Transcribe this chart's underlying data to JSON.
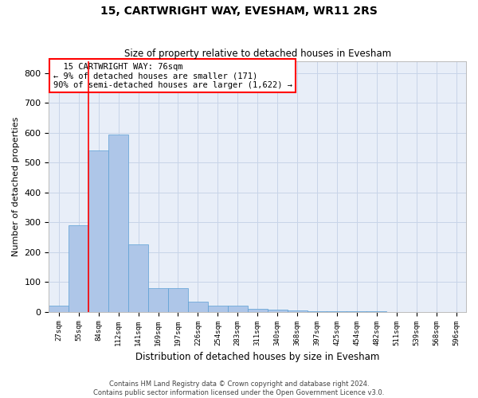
{
  "title": "15, CARTWRIGHT WAY, EVESHAM, WR11 2RS",
  "subtitle": "Size of property relative to detached houses in Evesham",
  "xlabel": "Distribution of detached houses by size in Evesham",
  "ylabel": "Number of detached properties",
  "footer1": "Contains HM Land Registry data © Crown copyright and database right 2024.",
  "footer2": "Contains public sector information licensed under the Open Government Licence v3.0.",
  "bins": [
    "27sqm",
    "55sqm",
    "84sqm",
    "112sqm",
    "141sqm",
    "169sqm",
    "197sqm",
    "226sqm",
    "254sqm",
    "283sqm",
    "311sqm",
    "340sqm",
    "368sqm",
    "397sqm",
    "425sqm",
    "454sqm",
    "482sqm",
    "511sqm",
    "539sqm",
    "568sqm",
    "596sqm"
  ],
  "values": [
    20,
    290,
    540,
    595,
    225,
    80,
    80,
    35,
    20,
    20,
    10,
    8,
    5,
    3,
    2,
    1,
    1,
    0,
    0,
    0,
    0
  ],
  "bar_color": "#aec6e8",
  "bar_edge_color": "#5a9fd4",
  "grid_color": "#c8d4e8",
  "background_color": "#e8eef8",
  "annotation_line1": "  15 CARTWRIGHT WAY: 76sqm",
  "annotation_line2": "← 9% of detached houses are smaller (171)",
  "annotation_line3": "90% of semi-detached houses are larger (1,622) →",
  "ylim": [
    0,
    840
  ],
  "yticks": [
    0,
    100,
    200,
    300,
    400,
    500,
    600,
    700,
    800
  ],
  "red_line_bin_index": 2
}
